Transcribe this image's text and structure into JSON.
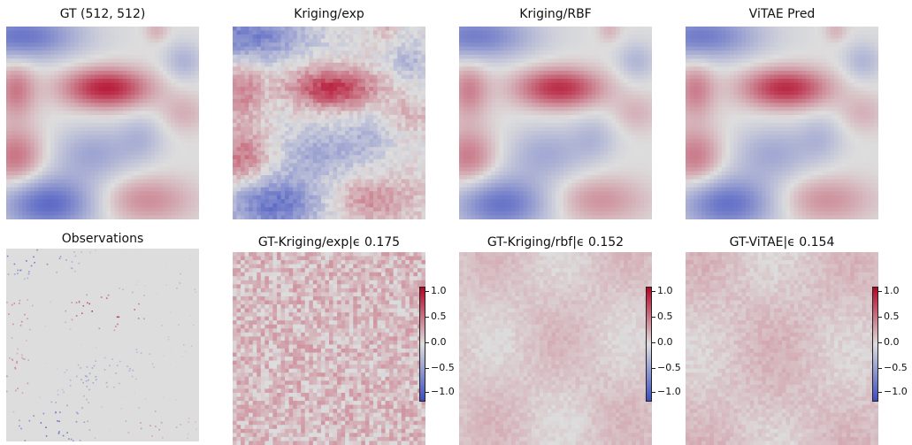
{
  "figure": {
    "panels": [
      {
        "key": "gt",
        "title": "GT (512, 512)",
        "kind": "field",
        "colorbar": false
      },
      {
        "key": "kexp",
        "title": "Kriging/exp",
        "kind": "field",
        "colorbar": false
      },
      {
        "key": "krbf",
        "title": "Kriging/RBF",
        "kind": "field",
        "colorbar": false
      },
      {
        "key": "vitae",
        "title": "ViTAE Pred",
        "kind": "field",
        "colorbar": false
      },
      {
        "key": "obs",
        "title": "Observations",
        "kind": "observations",
        "colorbar": false
      },
      {
        "key": "err_exp",
        "title": "GT-Kriging/exp|ϵ 0.175",
        "kind": "error",
        "colorbar": true
      },
      {
        "key": "err_rbf",
        "title": "GT-Kriging/rbf|ϵ 0.152",
        "kind": "error",
        "colorbar": true
      },
      {
        "key": "err_vitae",
        "title": "GT-ViTAE|ϵ 0.154",
        "kind": "error",
        "colorbar": true
      }
    ],
    "colorbar_ticks": [
      "1.0",
      "0.5",
      "0.0",
      "−0.5",
      "−1.0"
    ],
    "colormap": [
      "#3b4cc0",
      "#dddddd",
      "#b40426"
    ]
  },
  "chart_data": {
    "type": "heatmap",
    "grid_shape": "512 x 512",
    "colorbar_range": [
      -1.2,
      1.2
    ],
    "colorbar_ticks": [
      1.0,
      0.5,
      0.0,
      -0.5,
      -1.0
    ],
    "errors": [
      {
        "method": "Kriging/exp",
        "epsilon": 0.175
      },
      {
        "method": "Kriging/rbf",
        "epsilon": 0.152
      },
      {
        "method": "ViTAE",
        "epsilon": 0.154
      }
    ],
    "fields": [
      "GT (512, 512)",
      "Kriging/exp",
      "Kriging/RBF",
      "ViTAE Pred",
      "Observations"
    ]
  }
}
